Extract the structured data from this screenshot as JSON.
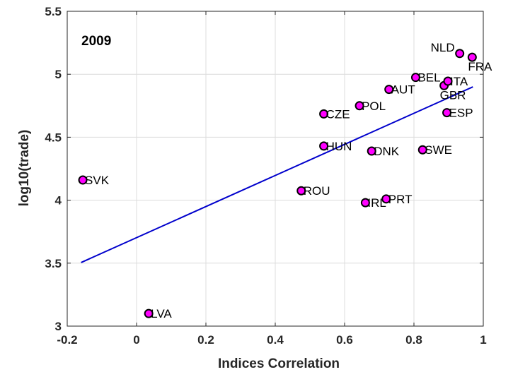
{
  "chart_data": {
    "type": "scatter",
    "annotation": "2009",
    "xlabel": "Indices Correlation",
    "ylabel": "log10(trade)",
    "xlim": [
      -0.2,
      1.0
    ],
    "ylim": [
      3.0,
      5.5
    ],
    "xticks": [
      -0.2,
      0,
      0.2,
      0.4,
      0.6,
      0.8,
      1.0
    ],
    "xtick_labels": [
      "-0.2",
      "0",
      "0.2",
      "0.4",
      "0.6",
      "0.8",
      "1"
    ],
    "yticks": [
      3.0,
      3.5,
      4.0,
      4.5,
      5.0,
      5.5
    ],
    "ytick_labels": [
      "3",
      "3.5",
      "4",
      "4.5",
      "5",
      "5.5"
    ],
    "grid": true,
    "marker_color": "#ff00ff",
    "marker_edge_color": "#000000",
    "fit_line_color": "#0000cc",
    "fit_line": {
      "x": [
        -0.16,
        0.97
      ],
      "y": [
        3.505,
        4.9
      ]
    },
    "points": [
      {
        "label": "SVK",
        "x": -0.155,
        "y": 4.16,
        "pos": "right"
      },
      {
        "label": "LVA",
        "x": 0.035,
        "y": 3.1,
        "pos": "right"
      },
      {
        "label": "ROU",
        "x": 0.475,
        "y": 4.075,
        "pos": "right"
      },
      {
        "label": "HUN",
        "x": 0.54,
        "y": 4.43,
        "pos": "right"
      },
      {
        "label": "CZE",
        "x": 0.54,
        "y": 4.685,
        "pos": "right"
      },
      {
        "label": "POL",
        "x": 0.643,
        "y": 4.75,
        "pos": "right"
      },
      {
        "label": "IRL",
        "x": 0.66,
        "y": 3.98,
        "pos": "right"
      },
      {
        "label": "DNK",
        "x": 0.678,
        "y": 4.39,
        "pos": "right"
      },
      {
        "label": "PRT",
        "x": 0.72,
        "y": 4.01,
        "pos": "right"
      },
      {
        "label": "AUT",
        "x": 0.728,
        "y": 4.88,
        "pos": "right"
      },
      {
        "label": "BEL",
        "x": 0.805,
        "y": 4.975,
        "pos": "right"
      },
      {
        "label": "SWE",
        "x": 0.825,
        "y": 4.4,
        "pos": "right"
      },
      {
        "label": "GBR",
        "x": 0.887,
        "y": 4.91,
        "pos": "below"
      },
      {
        "label": "ESP",
        "x": 0.895,
        "y": 4.695,
        "pos": "right"
      },
      {
        "label": "ITA",
        "x": 0.898,
        "y": 4.945,
        "pos": "right"
      },
      {
        "label": "NLD",
        "x": 0.932,
        "y": 5.165,
        "pos": "left"
      },
      {
        "label": "FRA",
        "x": 0.968,
        "y": 5.135,
        "pos": "below"
      }
    ]
  }
}
